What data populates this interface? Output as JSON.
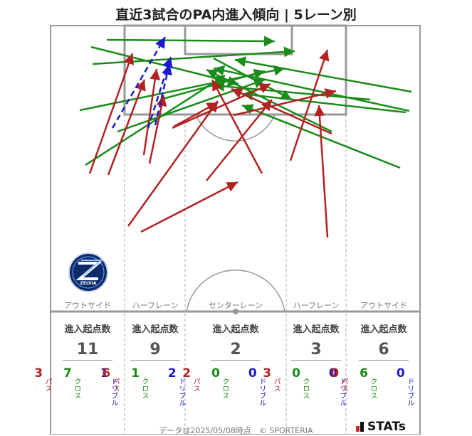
{
  "title": "直近3試合のPA内進入傾向 | 5レーン別",
  "lanes": [
    {
      "name": "アウトサイド",
      "header": "進入起点数",
      "total": "11",
      "pass": "3",
      "cross": "7",
      "dribble": "1"
    },
    {
      "name": "ハーフレーン",
      "header": "進入起点数",
      "total": "9",
      "pass": "6",
      "cross": "1",
      "dribble": "2"
    },
    {
      "name": "センターレーン",
      "header": "進入起点数",
      "total": "2",
      "pass": "2",
      "cross": "0",
      "dribble": "0"
    },
    {
      "name": "ハーフレーン",
      "header": "進入起点数",
      "total": "3",
      "pass": "3",
      "cross": "0",
      "dribble": "0"
    },
    {
      "name": "アウトサイド",
      "header": "進入起点数",
      "total": "6",
      "pass": "0",
      "cross": "6",
      "dribble": "0"
    }
  ],
  "labels": {
    "pass": "パス",
    "cross": "クロス",
    "dribble": "ドリブル"
  },
  "colors": {
    "pass": "#b22222",
    "cross": "#198c19",
    "dribble": "#1a1acc"
  },
  "logo": {
    "text": "ZELVIA"
  },
  "footer": "データは2025/05/08時点　© SPORTERIA",
  "brand": "STATs"
}
